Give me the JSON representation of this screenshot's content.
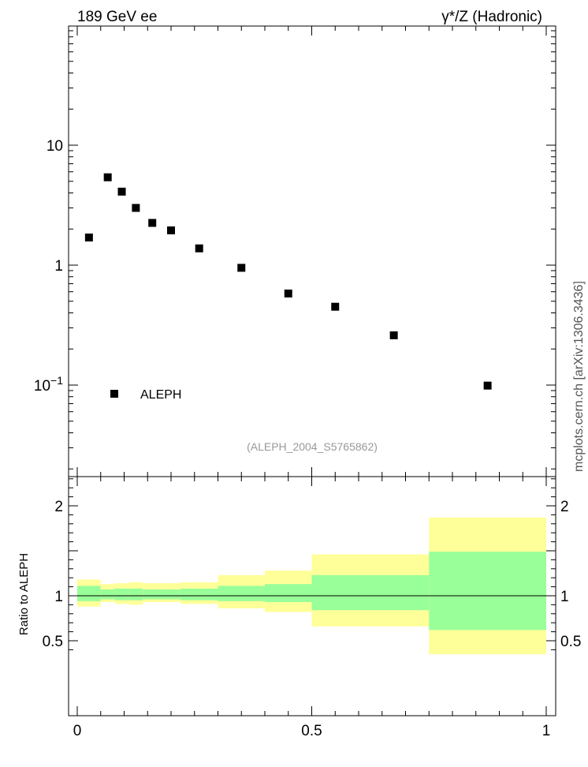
{
  "header": {
    "left": "189 GeV ee",
    "right": "γ*/Z (Hadronic)"
  },
  "side_label": "mcplots.cern.ch [arXiv:1306.3436]",
  "analysis_tag": "(ALEPH_2004_S5765862)",
  "chart_data": [
    {
      "type": "scatter",
      "yscale": "log",
      "ylim": [
        0.025,
        160
      ],
      "xlim": [
        0,
        1
      ],
      "y_tick_labels": [
        "10",
        "1",
        "10^-1"
      ],
      "y_tick_values": [
        10,
        1,
        0.1
      ],
      "legend": {
        "placement": "bottom-left",
        "entries": [
          "ALEPH"
        ]
      },
      "series": [
        {
          "name": "ALEPH",
          "marker": "square",
          "color": "#000000",
          "x": [
            0.025,
            0.065,
            0.095,
            0.125,
            0.16,
            0.2,
            0.26,
            0.35,
            0.45,
            0.55,
            0.675,
            0.875
          ],
          "y": [
            1.7,
            5.4,
            4.1,
            3.0,
            2.25,
            1.95,
            1.38,
            0.95,
            0.58,
            0.45,
            0.26,
            0.099
          ]
        }
      ]
    },
    {
      "type": "area",
      "ylabel": "Ratio to ALEPH",
      "xlim": [
        0,
        1
      ],
      "ylim": [
        0.35,
        2.3
      ],
      "x_tick_labels": [
        "0",
        "0.5",
        "1"
      ],
      "x_tick_values": [
        0,
        0.5,
        1
      ],
      "y_tick_labels": [
        "2",
        "1",
        "0.5"
      ],
      "y_tick_values": [
        2,
        1,
        0.5
      ],
      "reference_line": 1,
      "bands": {
        "bin_edges": [
          0,
          0.05,
          0.08,
          0.11,
          0.14,
          0.18,
          0.22,
          0.3,
          0.4,
          0.5,
          0.6,
          0.75,
          1.0
        ],
        "green_low": [
          0.94,
          0.96,
          0.95,
          0.95,
          0.96,
          0.96,
          0.95,
          0.94,
          0.93,
          0.84,
          0.84,
          0.62
        ],
        "green_high": [
          1.11,
          1.07,
          1.08,
          1.08,
          1.07,
          1.07,
          1.08,
          1.11,
          1.13,
          1.23,
          1.23,
          1.49
        ],
        "yellow_low": [
          0.88,
          0.93,
          0.91,
          0.9,
          0.93,
          0.93,
          0.91,
          0.86,
          0.82,
          0.66,
          0.66,
          0.35
        ],
        "yellow_high": [
          1.18,
          1.13,
          1.14,
          1.15,
          1.14,
          1.14,
          1.15,
          1.23,
          1.28,
          1.46,
          1.46,
          1.87
        ],
        "green_color": "#99ff99",
        "yellow_color": "#ffff99"
      }
    }
  ]
}
